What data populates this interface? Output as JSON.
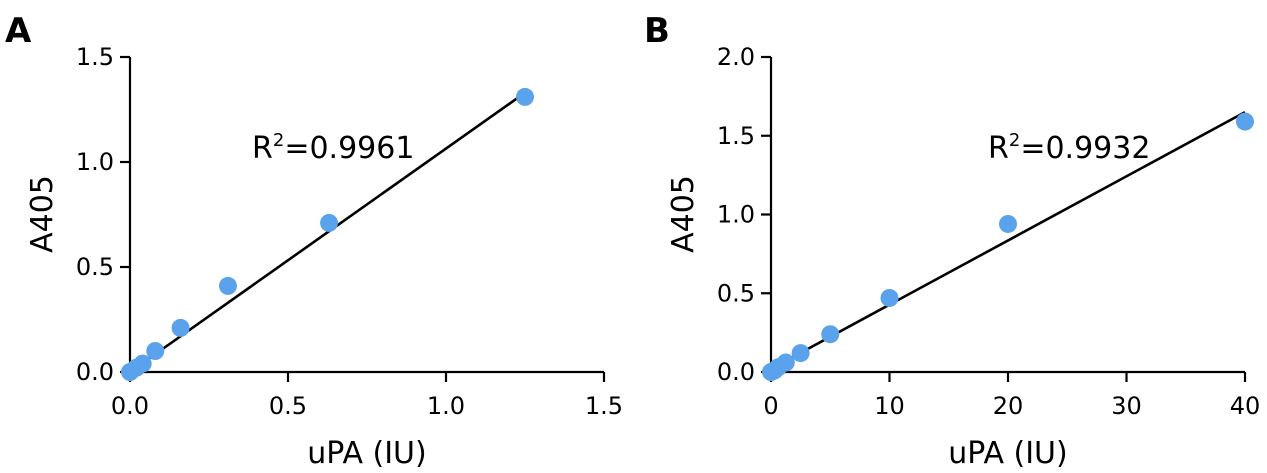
{
  "chart_data": [
    {
      "type": "scatter",
      "panel_label": "A",
      "xlabel": "uPA (IU)",
      "ylabel": "A405",
      "xlim": [
        0,
        1.5
      ],
      "ylim": [
        0,
        1.5
      ],
      "x_ticks": [
        "0.0",
        "0.5",
        "1.0",
        "1.5"
      ],
      "y_ticks": [
        "0.0",
        "0.5",
        "1.0",
        "1.5"
      ],
      "annotation": "R²=0.9961",
      "annotation_main": "R",
      "annotation_sup": "2",
      "annotation_rest": "=0.9961",
      "point_color": "#5aa2ec",
      "x": [
        0,
        0.02,
        0.04,
        0.08,
        0.16,
        0.31,
        0.63,
        1.25
      ],
      "y": [
        0.0,
        0.02,
        0.04,
        0.1,
        0.21,
        0.41,
        0.71,
        1.31
      ],
      "fit": {
        "x": [
          0,
          1.25
        ],
        "y": [
          0.0,
          1.33
        ]
      }
    },
    {
      "type": "scatter",
      "panel_label": "B",
      "xlabel": "uPA (IU)",
      "ylabel": "A405",
      "xlim": [
        0,
        40
      ],
      "ylim": [
        0,
        2.0
      ],
      "x_ticks": [
        "0",
        "10",
        "20",
        "30",
        "40"
      ],
      "y_ticks": [
        "0.0",
        "0.5",
        "1.0",
        "1.5",
        "2.0"
      ],
      "annotation": "R²=0.9932",
      "annotation_main": "R",
      "annotation_sup": "2",
      "annotation_rest": "=0.9932",
      "point_color": "#5aa2ec",
      "x": [
        0,
        0.3,
        0.6,
        1.25,
        2.5,
        5,
        10,
        20,
        40
      ],
      "y": [
        0.0,
        0.01,
        0.03,
        0.06,
        0.12,
        0.24,
        0.47,
        0.94,
        1.59
      ],
      "fit": {
        "x": [
          0,
          40
        ],
        "y": [
          0.02,
          1.65
        ]
      }
    }
  ]
}
